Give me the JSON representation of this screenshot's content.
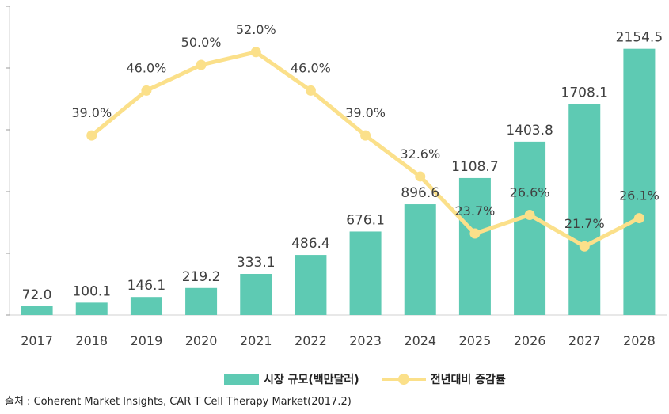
{
  "chart_data": {
    "type": "bar",
    "categories": [
      "2017",
      "2018",
      "2019",
      "2020",
      "2021",
      "2022",
      "2023",
      "2024",
      "2025",
      "2026",
      "2027",
      "2028"
    ],
    "series": [
      {
        "name": "시장 규모(백만달러)",
        "type": "bar",
        "values": [
          72.0,
          100.1,
          146.1,
          219.2,
          333.1,
          486.4,
          676.1,
          896.6,
          1108.7,
          1403.8,
          1708.1,
          2154.5
        ],
        "labels": [
          "72.0",
          "100.1",
          "146.1",
          "219.2",
          "333.1",
          "486.4",
          "676.1",
          "896.6",
          "1108.7",
          "1403.8",
          "1708.1",
          "2154.5"
        ],
        "color": "#5ecab3"
      },
      {
        "name": "전년대비 증감률",
        "type": "line",
        "values": [
          null,
          39.0,
          46.0,
          50.0,
          52.0,
          46.0,
          39.0,
          32.6,
          23.7,
          26.6,
          21.7,
          26.1
        ],
        "labels": [
          "",
          "39.0%",
          "46.0%",
          "50.0%",
          "52.0%",
          "46.0%",
          "39.0%",
          "32.6%",
          "23.7%",
          "26.6%",
          "21.7%",
          "26.1%"
        ],
        "color": "#fbe08a"
      }
    ],
    "title": "",
    "xlabel": "",
    "ylabel": "",
    "ylim": [
      0,
      2500
    ],
    "y2lim": [
      0,
      80
    ],
    "grid": false,
    "legend_position": "bottom"
  },
  "legend": {
    "bar_label": "시장 규모(백만달러)",
    "line_label": "전년대비 증감률"
  },
  "source": "출처 : Coherent Market Insights, CAR T Cell Therapy Market(2017.2)"
}
